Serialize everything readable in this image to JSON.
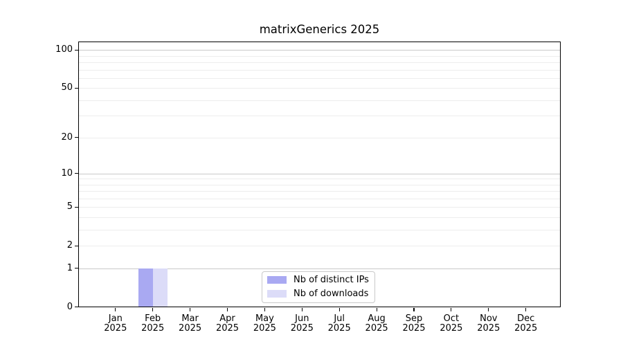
{
  "title": "matrixGenerics 2025",
  "chart_data": {
    "type": "bar",
    "title": "matrixGenerics 2025",
    "categories": [
      "Jan",
      "Feb",
      "Mar",
      "Apr",
      "May",
      "Jun",
      "Jul",
      "Aug",
      "Sep",
      "Oct",
      "Nov",
      "Dec"
    ],
    "category_year": "2025",
    "series": [
      {
        "name": "Nb of distinct IPs",
        "color": "#a9a9f2",
        "values": [
          0,
          1,
          0,
          0,
          0,
          0,
          0,
          0,
          0,
          0,
          0,
          0
        ]
      },
      {
        "name": "Nb of downloads",
        "color": "#dcdcf8",
        "values": [
          0,
          1,
          0,
          0,
          0,
          0,
          0,
          0,
          0,
          0,
          0,
          0
        ]
      }
    ],
    "y_ticks": [
      0,
      1,
      2,
      5,
      10,
      20,
      50,
      100
    ],
    "y_major_gridlines": [
      1,
      10,
      100
    ],
    "y_minor_gridlines": [
      2,
      3,
      4,
      5,
      6,
      7,
      8,
      9,
      20,
      30,
      40,
      50,
      60,
      70,
      80,
      90
    ],
    "y_scale": "log10(value+1)",
    "ylim": [
      0,
      117.5
    ],
    "xlabel": "",
    "ylabel": "",
    "grid": true,
    "legend_position": "lower center"
  },
  "colors": {
    "background": "#ffffff",
    "spine": "#000000",
    "grid_major": "#c9c9c9",
    "grid_minor": "#ededed",
    "legend_border": "#c9c9c9",
    "text": "#000000"
  }
}
